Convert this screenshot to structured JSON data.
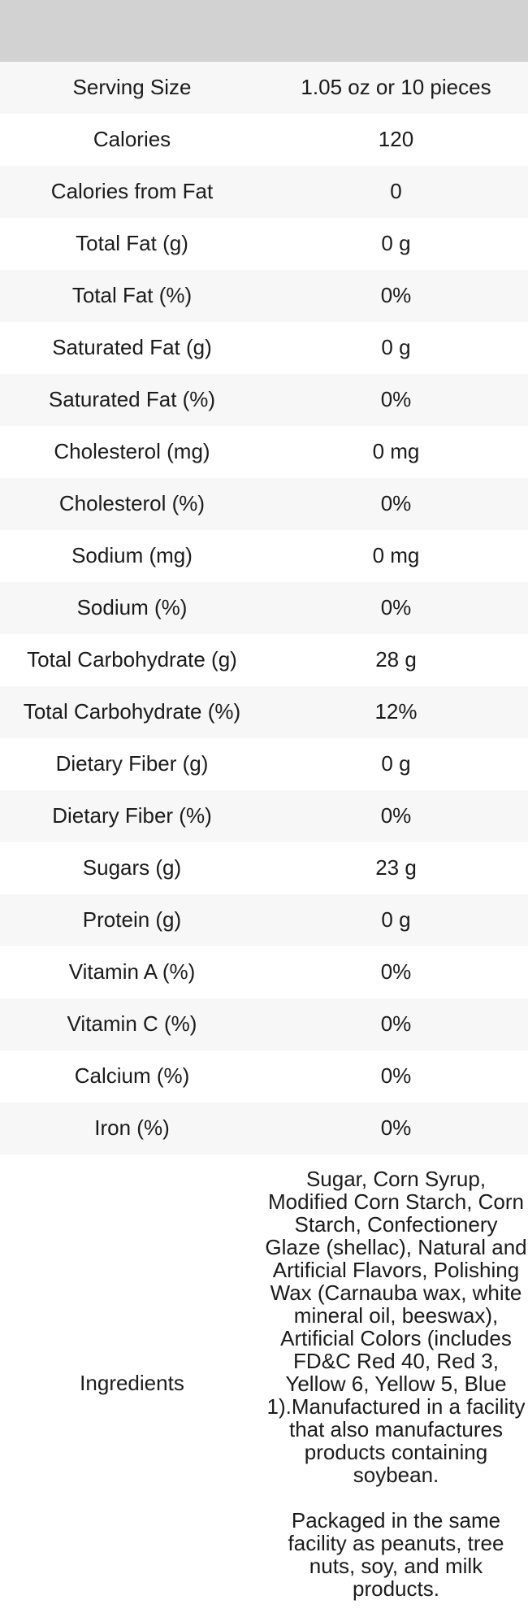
{
  "colors": {
    "image_header_bg": "#d2d2d2",
    "row_alt_bg": "#f7f7f7",
    "row_bg": "#ffffff",
    "text": "#1b1b1b"
  },
  "table": {
    "rows": [
      {
        "label": "Serving Size",
        "value": "1.05 oz or 10 pieces"
      },
      {
        "label": "Calories",
        "value": "120"
      },
      {
        "label": "Calories from Fat",
        "value": "0"
      },
      {
        "label": "Total Fat (g)",
        "value": "0 g"
      },
      {
        "label": "Total Fat (%)",
        "value": "0%"
      },
      {
        "label": "Saturated Fat (g)",
        "value": "0 g"
      },
      {
        "label": "Saturated Fat (%)",
        "value": "0%"
      },
      {
        "label": "Cholesterol (mg)",
        "value": "0 mg"
      },
      {
        "label": "Cholesterol (%)",
        "value": "0%"
      },
      {
        "label": "Sodium (mg)",
        "value": "0 mg"
      },
      {
        "label": "Sodium (%)",
        "value": "0%"
      },
      {
        "label": "Total Carbohydrate (g)",
        "value": "28 g"
      },
      {
        "label": "Total Carbohydrate (%)",
        "value": "12%"
      },
      {
        "label": "Dietary Fiber (g)",
        "value": "0 g"
      },
      {
        "label": "Dietary Fiber (%)",
        "value": "0%"
      },
      {
        "label": "Sugars (g)",
        "value": "23 g"
      },
      {
        "label": "Protein (g)",
        "value": "0 g"
      },
      {
        "label": "Vitamin A (%)",
        "value": "0%"
      },
      {
        "label": "Vitamin C (%)",
        "value": "0%"
      },
      {
        "label": "Calcium (%)",
        "value": "0%"
      },
      {
        "label": "Iron (%)",
        "value": "0%"
      }
    ],
    "ingredients": {
      "label": "Ingredients",
      "paragraph1": "Sugar, Corn Syrup, Modified Corn Starch, Corn Starch, Confectionery Glaze (shellac), Natural and Artificial Flavors, Polishing Wax (Carnauba wax, white mineral oil, beeswax), Artificial Colors (includes FD&C Red 40, Red 3, Yellow 6, Yellow 5, Blue 1).Manufactured in a facility that also manufactures products containing soybean.",
      "paragraph2": "Packaged in the same facility as peanuts, tree nuts, soy, and milk products."
    }
  }
}
